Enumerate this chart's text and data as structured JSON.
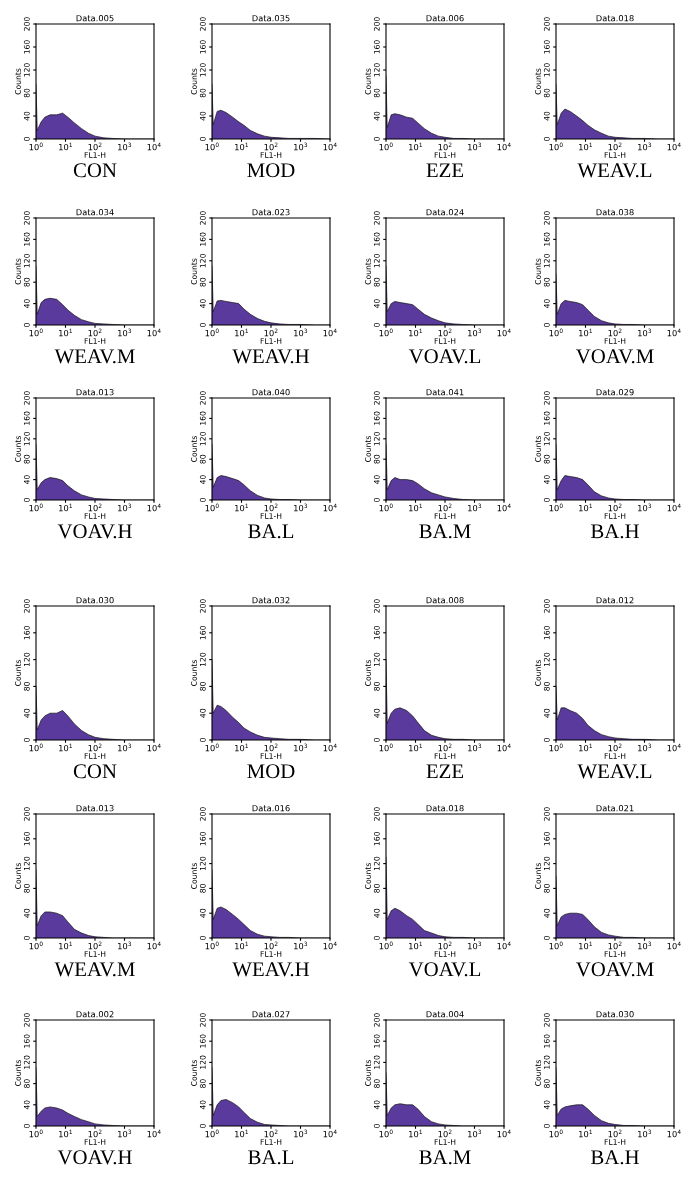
{
  "chart_data": [
    {
      "type": "area",
      "title": "Data.005",
      "xlabel": "FL1-H",
      "ylabel": "Counts",
      "annotations": [
        "CON"
      ],
      "x": [
        1,
        1.1,
        1.5,
        2,
        3,
        5,
        8,
        12,
        20,
        35,
        60,
        100,
        200,
        400,
        1000,
        3000,
        10000
      ],
      "values": [
        95,
        15,
        30,
        38,
        42,
        42,
        45,
        38,
        28,
        18,
        10,
        5,
        2,
        1,
        0,
        0,
        0
      ],
      "color": "#5b3a9e",
      "log": "x",
      "xlim": [
        1,
        10000
      ],
      "ylim": [
        0,
        200
      ],
      "xticks": [
        {
          "value": 1,
          "label": "10$^{0}$"
        },
        {
          "value": 10,
          "label": "10$^{1}$"
        },
        {
          "value": 100,
          "label": "10$^{2}$"
        },
        {
          "value": 1000,
          "label": "10$^{3}$"
        },
        {
          "value": 10000,
          "label": "10$^{4}$"
        }
      ],
      "yticks": [
        0,
        40,
        80,
        120,
        160,
        200
      ],
      "grid": false
    },
    {
      "type": "area",
      "title": "Data.035",
      "xlabel": "FL1-H",
      "ylabel": "Counts",
      "annotations": [
        "MOD"
      ],
      "x": [
        1,
        1.1,
        1.5,
        2,
        3,
        5,
        8,
        12,
        20,
        35,
        60,
        100,
        200,
        400,
        1000,
        3000,
        10000
      ],
      "values": [
        95,
        25,
        48,
        50,
        46,
        38,
        30,
        24,
        15,
        9,
        5,
        3,
        2,
        1,
        1,
        1,
        0
      ],
      "color": "#5b3a9e",
      "log": "x",
      "xlim": [
        1,
        10000
      ],
      "ylim": [
        0,
        200
      ],
      "xticks": [
        {
          "value": 1,
          "label": "10$^{0}$"
        },
        {
          "value": 10,
          "label": "10$^{1}$"
        },
        {
          "value": 100,
          "label": "10$^{2}$"
        },
        {
          "value": 1000,
          "label": "10$^{3}$"
        },
        {
          "value": 10000,
          "label": "10$^{4}$"
        }
      ],
      "yticks": [
        0,
        40,
        80,
        120,
        160,
        200
      ],
      "grid": false
    },
    {
      "type": "area",
      "title": "Data.006",
      "xlabel": "FL1-H",
      "ylabel": "Counts",
      "annotations": [
        "EZE"
      ],
      "x": [
        1,
        1.1,
        1.5,
        2,
        3,
        5,
        8,
        12,
        20,
        35,
        60,
        100,
        200,
        400,
        1000,
        3000,
        10000
      ],
      "values": [
        110,
        20,
        42,
        44,
        42,
        38,
        36,
        28,
        18,
        10,
        5,
        3,
        1,
        1,
        0,
        0,
        0
      ],
      "color": "#5b3a9e",
      "log": "x",
      "xlim": [
        1,
        10000
      ],
      "ylim": [
        0,
        200
      ],
      "xticks": [
        {
          "value": 1,
          "label": "10$^{0}$"
        },
        {
          "value": 10,
          "label": "10$^{1}$"
        },
        {
          "value": 100,
          "label": "10$^{2}$"
        },
        {
          "value": 1000,
          "label": "10$^{3}$"
        },
        {
          "value": 10000,
          "label": "10$^{4}$"
        }
      ],
      "yticks": [
        0,
        40,
        80,
        120,
        160,
        200
      ],
      "grid": false
    },
    {
      "type": "area",
      "title": "Data.018",
      "xlabel": "FL1-H",
      "ylabel": "Counts",
      "annotations": [
        "WEAV.L"
      ],
      "x": [
        1,
        1.1,
        1.5,
        2,
        3,
        5,
        8,
        12,
        20,
        35,
        60,
        100,
        200,
        400,
        1000,
        3000,
        10000
      ],
      "values": [
        95,
        25,
        45,
        52,
        48,
        40,
        32,
        24,
        16,
        10,
        5,
        3,
        2,
        1,
        1,
        0,
        0
      ],
      "color": "#5b3a9e",
      "log": "x",
      "xlim": [
        1,
        10000
      ],
      "ylim": [
        0,
        200
      ],
      "xticks": [
        {
          "value": 1,
          "label": "10$^{0}$"
        },
        {
          "value": 10,
          "label": "10$^{1}$"
        },
        {
          "value": 100,
          "label": "10$^{2}$"
        },
        {
          "value": 1000,
          "label": "10$^{3}$"
        },
        {
          "value": 10000,
          "label": "10$^{4}$"
        }
      ],
      "yticks": [
        0,
        40,
        80,
        120,
        160,
        200
      ],
      "grid": false
    },
    {
      "type": "area",
      "title": "Data.034",
      "xlabel": "FL1-H",
      "ylabel": "Counts",
      "annotations": [
        "WEAV.M"
      ],
      "x": [
        1,
        1.1,
        1.5,
        2,
        3,
        5,
        8,
        12,
        20,
        35,
        60,
        100,
        200,
        400,
        1000,
        3000,
        10000
      ],
      "values": [
        110,
        20,
        42,
        48,
        50,
        48,
        38,
        28,
        18,
        10,
        6,
        3,
        2,
        1,
        0,
        0,
        0
      ],
      "color": "#5b3a9e",
      "log": "x",
      "xlim": [
        1,
        10000
      ],
      "ylim": [
        0,
        200
      ],
      "xticks": [
        {
          "value": 1,
          "label": "10$^{0}$"
        },
        {
          "value": 10,
          "label": "10$^{1}$"
        },
        {
          "value": 100,
          "label": "10$^{2}$"
        },
        {
          "value": 1000,
          "label": "10$^{3}$"
        },
        {
          "value": 10000,
          "label": "10$^{4}$"
        }
      ],
      "yticks": [
        0,
        40,
        80,
        120,
        160,
        200
      ],
      "grid": false
    },
    {
      "type": "area",
      "title": "Data.023",
      "xlabel": "FL1-H",
      "ylabel": "Counts",
      "annotations": [
        "WEAV.H"
      ],
      "x": [
        1,
        1.1,
        1.5,
        2,
        3,
        5,
        8,
        12,
        20,
        35,
        60,
        100,
        200,
        400,
        1000,
        3000,
        10000
      ],
      "values": [
        110,
        25,
        45,
        46,
        44,
        42,
        40,
        30,
        20,
        12,
        7,
        4,
        2,
        1,
        1,
        0,
        0
      ],
      "color": "#5b3a9e",
      "log": "x",
      "xlim": [
        1,
        10000
      ],
      "ylim": [
        0,
        200
      ],
      "xticks": [
        {
          "value": 1,
          "label": "10$^{0}$"
        },
        {
          "value": 10,
          "label": "10$^{1}$"
        },
        {
          "value": 100,
          "label": "10$^{2}$"
        },
        {
          "value": 1000,
          "label": "10$^{3}$"
        },
        {
          "value": 10000,
          "label": "10$^{4}$"
        }
      ],
      "yticks": [
        0,
        40,
        80,
        120,
        160,
        200
      ],
      "grid": false
    },
    {
      "type": "area",
      "title": "Data.024",
      "xlabel": "FL1-H",
      "ylabel": "Counts",
      "annotations": [
        "VOAV.L"
      ],
      "x": [
        1,
        1.1,
        1.5,
        2,
        3,
        5,
        8,
        12,
        20,
        35,
        60,
        100,
        200,
        400,
        1000,
        3000,
        10000
      ],
      "values": [
        110,
        25,
        40,
        44,
        42,
        40,
        38,
        30,
        20,
        13,
        8,
        4,
        2,
        1,
        0,
        0,
        0
      ],
      "color": "#5b3a9e",
      "log": "x",
      "xlim": [
        1,
        10000
      ],
      "ylim": [
        0,
        200
      ],
      "xticks": [
        {
          "value": 1,
          "label": "10$^{0}$"
        },
        {
          "value": 10,
          "label": "10$^{1}$"
        },
        {
          "value": 100,
          "label": "10$^{2}$"
        },
        {
          "value": 1000,
          "label": "10$^{3}$"
        },
        {
          "value": 10000,
          "label": "10$^{4}$"
        }
      ],
      "yticks": [
        0,
        40,
        80,
        120,
        160,
        200
      ],
      "grid": false
    },
    {
      "type": "area",
      "title": "Data.038",
      "xlabel": "FL1-H",
      "ylabel": "Counts",
      "annotations": [
        "VOAV.M"
      ],
      "x": [
        1,
        1.1,
        1.5,
        2,
        3,
        5,
        8,
        12,
        20,
        35,
        60,
        100,
        200,
        400,
        1000,
        3000,
        10000
      ],
      "values": [
        95,
        20,
        40,
        46,
        44,
        42,
        38,
        28,
        16,
        8,
        4,
        2,
        1,
        1,
        0,
        0,
        0
      ],
      "color": "#5b3a9e",
      "log": "x",
      "xlim": [
        1,
        10000
      ],
      "ylim": [
        0,
        200
      ],
      "xticks": [
        {
          "value": 1,
          "label": "10$^{0}$"
        },
        {
          "value": 10,
          "label": "10$^{1}$"
        },
        {
          "value": 100,
          "label": "10$^{2}$"
        },
        {
          "value": 1000,
          "label": "10$^{3}$"
        },
        {
          "value": 10000,
          "label": "10$^{4}$"
        }
      ],
      "yticks": [
        0,
        40,
        80,
        120,
        160,
        200
      ],
      "grid": false
    },
    {
      "type": "area",
      "title": "Data.013",
      "xlabel": "FL1-H",
      "ylabel": "Counts",
      "annotations": [
        "VOAV.H"
      ],
      "x": [
        1,
        1.1,
        1.5,
        2,
        3,
        5,
        8,
        12,
        20,
        35,
        60,
        100,
        200,
        400,
        1000,
        3000,
        10000
      ],
      "values": [
        110,
        20,
        34,
        40,
        44,
        42,
        38,
        28,
        18,
        10,
        6,
        3,
        2,
        1,
        0,
        0,
        0
      ],
      "color": "#5b3a9e",
      "log": "x",
      "xlim": [
        1,
        10000
      ],
      "ylim": [
        0,
        200
      ],
      "xticks": [
        {
          "value": 1,
          "label": "10$^{0}$"
        },
        {
          "value": 10,
          "label": "10$^{1}$"
        },
        {
          "value": 100,
          "label": "10$^{2}$"
        },
        {
          "value": 1000,
          "label": "10$^{3}$"
        },
        {
          "value": 10000,
          "label": "10$^{4}$"
        }
      ],
      "yticks": [
        0,
        40,
        80,
        120,
        160,
        200
      ],
      "grid": false
    },
    {
      "type": "area",
      "title": "Data.040",
      "xlabel": "FL1-H",
      "ylabel": "Counts",
      "annotations": [
        "BA.L"
      ],
      "x": [
        1,
        1.1,
        1.5,
        2,
        3,
        5,
        8,
        12,
        20,
        35,
        60,
        100,
        200,
        400,
        1000,
        3000,
        10000
      ],
      "values": [
        110,
        25,
        44,
        48,
        46,
        42,
        38,
        30,
        18,
        9,
        4,
        2,
        1,
        1,
        0,
        0,
        0
      ],
      "color": "#5b3a9e",
      "log": "x",
      "xlim": [
        1,
        10000
      ],
      "ylim": [
        0,
        200
      ],
      "xticks": [
        {
          "value": 1,
          "label": "10$^{0}$"
        },
        {
          "value": 10,
          "label": "10$^{1}$"
        },
        {
          "value": 100,
          "label": "10$^{2}$"
        },
        {
          "value": 1000,
          "label": "10$^{3}$"
        },
        {
          "value": 10000,
          "label": "10$^{4}$"
        }
      ],
      "yticks": [
        0,
        40,
        80,
        120,
        160,
        200
      ],
      "grid": false
    },
    {
      "type": "area",
      "title": "Data.041",
      "xlabel": "FL1-H",
      "ylabel": "Counts",
      "annotations": [
        "BA.M"
      ],
      "x": [
        1,
        1.1,
        1.5,
        2,
        3,
        5,
        8,
        12,
        20,
        35,
        60,
        100,
        200,
        400,
        1000,
        3000,
        10000
      ],
      "values": [
        110,
        20,
        38,
        44,
        40,
        40,
        38,
        32,
        22,
        14,
        10,
        6,
        3,
        1,
        0,
        0,
        0
      ],
      "color": "#5b3a9e",
      "log": "x",
      "xlim": [
        1,
        10000
      ],
      "ylim": [
        0,
        200
      ],
      "xticks": [
        {
          "value": 1,
          "label": "10$^{0}$"
        },
        {
          "value": 10,
          "label": "10$^{1}$"
        },
        {
          "value": 100,
          "label": "10$^{2}$"
        },
        {
          "value": 1000,
          "label": "10$^{3}$"
        },
        {
          "value": 10000,
          "label": "10$^{4}$"
        }
      ],
      "yticks": [
        0,
        40,
        80,
        120,
        160,
        200
      ],
      "grid": false
    },
    {
      "type": "area",
      "title": "Data.029",
      "xlabel": "FL1-H",
      "ylabel": "Counts",
      "annotations": [
        "BA.H"
      ],
      "x": [
        1,
        1.1,
        1.5,
        2,
        3,
        5,
        8,
        12,
        20,
        35,
        60,
        100,
        200,
        400,
        1000,
        3000,
        10000
      ],
      "values": [
        110,
        20,
        38,
        48,
        46,
        44,
        40,
        30,
        16,
        8,
        4,
        2,
        1,
        1,
        0,
        0,
        0
      ],
      "color": "#5b3a9e",
      "log": "x",
      "xlim": [
        1,
        10000
      ],
      "ylim": [
        0,
        200
      ],
      "xticks": [
        {
          "value": 1,
          "label": "10$^{0}$"
        },
        {
          "value": 10,
          "label": "10$^{1}$"
        },
        {
          "value": 100,
          "label": "10$^{2}$"
        },
        {
          "value": 1000,
          "label": "10$^{3}$"
        },
        {
          "value": 10000,
          "label": "10$^{4}$"
        }
      ],
      "yticks": [
        0,
        40,
        80,
        120,
        160,
        200
      ],
      "grid": false
    },
    {
      "type": "area",
      "title": "Data.030",
      "xlabel": "FL1-H",
      "ylabel": "Counts",
      "annotations": [
        "CON"
      ],
      "x": [
        1,
        1.1,
        1.5,
        2,
        3,
        5,
        8,
        12,
        20,
        35,
        60,
        100,
        200,
        400,
        1000,
        3000,
        10000
      ],
      "values": [
        80,
        15,
        30,
        36,
        40,
        40,
        44,
        36,
        24,
        14,
        8,
        4,
        2,
        1,
        0,
        0,
        0
      ],
      "color": "#5b3a9e",
      "log": "x",
      "xlim": [
        1,
        10000
      ],
      "ylim": [
        0,
        200
      ],
      "xticks": [
        {
          "value": 1,
          "label": "10$^{0}$"
        },
        {
          "value": 10,
          "label": "10$^{1}$"
        },
        {
          "value": 100,
          "label": "10$^{2}$"
        },
        {
          "value": 1000,
          "label": "10$^{3}$"
        },
        {
          "value": 10000,
          "label": "10$^{4}$"
        }
      ],
      "yticks": [
        0,
        40,
        80,
        120,
        160,
        200
      ],
      "grid": false
    },
    {
      "type": "area",
      "title": "Data.032",
      "xlabel": "FL1-H",
      "ylabel": "Counts",
      "annotations": [
        "MOD"
      ],
      "x": [
        1,
        1.1,
        1.5,
        2,
        3,
        5,
        8,
        12,
        20,
        35,
        60,
        100,
        200,
        400,
        1000,
        3000,
        10000
      ],
      "values": [
        120,
        40,
        52,
        50,
        44,
        34,
        26,
        18,
        12,
        7,
        4,
        3,
        2,
        1,
        1,
        0,
        0
      ],
      "color": "#5b3a9e",
      "log": "x",
      "xlim": [
        1,
        10000
      ],
      "ylim": [
        0,
        200
      ],
      "xticks": [
        {
          "value": 1,
          "label": "10$^{0}$"
        },
        {
          "value": 10,
          "label": "10$^{1}$"
        },
        {
          "value": 100,
          "label": "10$^{2}$"
        },
        {
          "value": 1000,
          "label": "10$^{3}$"
        },
        {
          "value": 10000,
          "label": "10$^{4}$"
        }
      ],
      "yticks": [
        0,
        40,
        80,
        120,
        160,
        200
      ],
      "grid": false
    },
    {
      "type": "area",
      "title": "Data.008",
      "xlabel": "FL1-H",
      "ylabel": "Counts",
      "annotations": [
        "EZE"
      ],
      "x": [
        1,
        1.1,
        1.5,
        2,
        3,
        5,
        8,
        12,
        20,
        35,
        60,
        100,
        200,
        400,
        1000,
        3000,
        10000
      ],
      "values": [
        120,
        25,
        40,
        46,
        48,
        44,
        36,
        26,
        14,
        7,
        4,
        2,
        1,
        1,
        0,
        0,
        0
      ],
      "color": "#5b3a9e",
      "log": "x",
      "xlim": [
        1,
        10000
      ],
      "ylim": [
        0,
        200
      ],
      "xticks": [
        {
          "value": 1,
          "label": "10$^{0}$"
        },
        {
          "value": 10,
          "label": "10$^{1}$"
        },
        {
          "value": 100,
          "label": "10$^{2}$"
        },
        {
          "value": 1000,
          "label": "10$^{3}$"
        },
        {
          "value": 10000,
          "label": "10$^{4}$"
        }
      ],
      "yticks": [
        0,
        40,
        80,
        120,
        160,
        200
      ],
      "grid": false
    },
    {
      "type": "area",
      "title": "Data.012",
      "xlabel": "FL1-H",
      "ylabel": "Counts",
      "annotations": [
        "WEAV.L"
      ],
      "x": [
        1,
        1.1,
        1.5,
        2,
        3,
        5,
        8,
        12,
        20,
        35,
        60,
        100,
        200,
        400,
        1000,
        3000,
        10000
      ],
      "values": [
        80,
        30,
        48,
        48,
        44,
        40,
        32,
        22,
        14,
        8,
        5,
        3,
        2,
        1,
        1,
        0,
        0
      ],
      "color": "#5b3a9e",
      "log": "x",
      "xlim": [
        1,
        10000
      ],
      "ylim": [
        0,
        200
      ],
      "xticks": [
        {
          "value": 1,
          "label": "10$^{0}$"
        },
        {
          "value": 10,
          "label": "10$^{1}$"
        },
        {
          "value": 100,
          "label": "10$^{2}$"
        },
        {
          "value": 1000,
          "label": "10$^{3}$"
        },
        {
          "value": 10000,
          "label": "10$^{4}$"
        }
      ],
      "yticks": [
        0,
        40,
        80,
        120,
        160,
        200
      ],
      "grid": false
    },
    {
      "type": "area",
      "title": "Data.013",
      "xlabel": "FL1-H",
      "ylabel": "Counts",
      "annotations": [
        "WEAV.M"
      ],
      "x": [
        1,
        1.1,
        1.5,
        2,
        3,
        5,
        8,
        12,
        20,
        35,
        60,
        100,
        200,
        400,
        1000,
        3000,
        10000
      ],
      "values": [
        110,
        20,
        36,
        42,
        42,
        40,
        36,
        26,
        14,
        8,
        4,
        2,
        1,
        0,
        0,
        0,
        0
      ],
      "color": "#5b3a9e",
      "log": "x",
      "xlim": [
        1,
        10000
      ],
      "ylim": [
        0,
        200
      ],
      "xticks": [
        {
          "value": 1,
          "label": "10$^{0}$"
        },
        {
          "value": 10,
          "label": "10$^{1}$"
        },
        {
          "value": 100,
          "label": "10$^{2}$"
        },
        {
          "value": 1000,
          "label": "10$^{3}$"
        },
        {
          "value": 10000,
          "label": "10$^{4}$"
        }
      ],
      "yticks": [
        0,
        40,
        80,
        120,
        160,
        200
      ],
      "grid": false
    },
    {
      "type": "area",
      "title": "Data.016",
      "xlabel": "FL1-H",
      "ylabel": "Counts",
      "annotations": [
        "WEAV.H"
      ],
      "x": [
        1,
        1.1,
        1.5,
        2,
        3,
        5,
        8,
        12,
        20,
        35,
        60,
        100,
        200,
        400,
        1000,
        3000,
        10000
      ],
      "values": [
        110,
        30,
        48,
        50,
        46,
        38,
        30,
        22,
        12,
        6,
        3,
        2,
        1,
        1,
        0,
        0,
        0
      ],
      "color": "#5b3a9e",
      "log": "x",
      "xlim": [
        1,
        10000
      ],
      "ylim": [
        0,
        200
      ],
      "xticks": [
        {
          "value": 1,
          "label": "10$^{0}$"
        },
        {
          "value": 10,
          "label": "10$^{1}$"
        },
        {
          "value": 100,
          "label": "10$^{2}$"
        },
        {
          "value": 1000,
          "label": "10$^{3}$"
        },
        {
          "value": 10000,
          "label": "10$^{4}$"
        }
      ],
      "yticks": [
        0,
        40,
        80,
        120,
        160,
        200
      ],
      "grid": false
    },
    {
      "type": "area",
      "title": "Data.018",
      "xlabel": "FL1-H",
      "ylabel": "Counts",
      "annotations": [
        "VOAV.L"
      ],
      "x": [
        1,
        1.1,
        1.5,
        2,
        3,
        5,
        8,
        12,
        20,
        35,
        60,
        100,
        200,
        400,
        1000,
        3000,
        10000
      ],
      "values": [
        130,
        30,
        44,
        48,
        44,
        36,
        30,
        22,
        12,
        8,
        4,
        2,
        1,
        1,
        0,
        0,
        0
      ],
      "color": "#5b3a9e",
      "log": "x",
      "xlim": [
        1,
        10000
      ],
      "ylim": [
        0,
        200
      ],
      "xticks": [
        {
          "value": 1,
          "label": "10$^{0}$"
        },
        {
          "value": 10,
          "label": "10$^{1}$"
        },
        {
          "value": 100,
          "label": "10$^{2}$"
        },
        {
          "value": 1000,
          "label": "10$^{3}$"
        },
        {
          "value": 10000,
          "label": "10$^{4}$"
        }
      ],
      "yticks": [
        0,
        40,
        80,
        120,
        160,
        200
      ],
      "grid": false
    },
    {
      "type": "area",
      "title": "Data.021",
      "xlabel": "FL1-H",
      "ylabel": "Counts",
      "annotations": [
        "VOAV.M"
      ],
      "x": [
        1,
        1.1,
        1.5,
        2,
        3,
        5,
        8,
        12,
        20,
        35,
        60,
        100,
        200,
        400,
        1000,
        3000,
        10000
      ],
      "values": [
        100,
        20,
        34,
        38,
        40,
        40,
        38,
        30,
        18,
        9,
        5,
        3,
        1,
        1,
        0,
        0,
        0
      ],
      "color": "#5b3a9e",
      "log": "x",
      "xlim": [
        1,
        10000
      ],
      "ylim": [
        0,
        200
      ],
      "xticks": [
        {
          "value": 1,
          "label": "10$^{0}$"
        },
        {
          "value": 10,
          "label": "10$^{1}$"
        },
        {
          "value": 100,
          "label": "10$^{2}$"
        },
        {
          "value": 1000,
          "label": "10$^{3}$"
        },
        {
          "value": 10000,
          "label": "10$^{4}$"
        }
      ],
      "yticks": [
        0,
        40,
        80,
        120,
        160,
        200
      ],
      "grid": false
    },
    {
      "type": "area",
      "title": "Data.002",
      "xlabel": "FL1-H",
      "ylabel": "Counts",
      "annotations": [
        "VOAV.H"
      ],
      "x": [
        1,
        1.1,
        1.5,
        2,
        3,
        5,
        8,
        12,
        20,
        35,
        60,
        100,
        200,
        400,
        1000,
        3000,
        10000
      ],
      "values": [
        110,
        18,
        28,
        34,
        36,
        34,
        30,
        24,
        18,
        12,
        8,
        4,
        2,
        1,
        0,
        0,
        0
      ],
      "color": "#5b3a9e",
      "log": "x",
      "xlim": [
        1,
        10000
      ],
      "ylim": [
        0,
        200
      ],
      "xticks": [
        {
          "value": 1,
          "label": "10$^{0}$"
        },
        {
          "value": 10,
          "label": "10$^{1}$"
        },
        {
          "value": 100,
          "label": "10$^{2}$"
        },
        {
          "value": 1000,
          "label": "10$^{3}$"
        },
        {
          "value": 10000,
          "label": "10$^{4}$"
        }
      ],
      "yticks": [
        0,
        40,
        80,
        120,
        160,
        200
      ],
      "grid": false
    },
    {
      "type": "area",
      "title": "Data.027",
      "xlabel": "FL1-H",
      "ylabel": "Counts",
      "annotations": [
        "BA.L"
      ],
      "x": [
        1,
        1.1,
        1.5,
        2,
        3,
        5,
        8,
        12,
        20,
        35,
        60,
        100,
        200,
        400,
        1000,
        3000,
        10000
      ],
      "values": [
        110,
        20,
        40,
        48,
        50,
        44,
        36,
        26,
        14,
        7,
        3,
        2,
        1,
        0,
        0,
        0,
        0
      ],
      "color": "#5b3a9e",
      "log": "x",
      "xlim": [
        1,
        10000
      ],
      "ylim": [
        0,
        200
      ],
      "xticks": [
        {
          "value": 1,
          "label": "10$^{0}$"
        },
        {
          "value": 10,
          "label": "10$^{1}$"
        },
        {
          "value": 100,
          "label": "10$^{2}$"
        },
        {
          "value": 1000,
          "label": "10$^{3}$"
        },
        {
          "value": 10000,
          "label": "10$^{4}$"
        }
      ],
      "yticks": [
        0,
        40,
        80,
        120,
        160,
        200
      ],
      "grid": false
    },
    {
      "type": "area",
      "title": "Data.004",
      "xlabel": "FL1-H",
      "ylabel": "Counts",
      "annotations": [
        "BA.M"
      ],
      "x": [
        1,
        1.1,
        1.5,
        2,
        3,
        5,
        8,
        12,
        20,
        35,
        60,
        100,
        200,
        400,
        1000,
        3000,
        10000
      ],
      "values": [
        100,
        20,
        34,
        40,
        42,
        40,
        40,
        32,
        18,
        8,
        4,
        2,
        1,
        0,
        0,
        0,
        0
      ],
      "color": "#5b3a9e",
      "log": "x",
      "xlim": [
        1,
        10000
      ],
      "ylim": [
        0,
        200
      ],
      "xticks": [
        {
          "value": 1,
          "label": "10$^{0}$"
        },
        {
          "value": 10,
          "label": "10$^{1}$"
        },
        {
          "value": 100,
          "label": "10$^{2}$"
        },
        {
          "value": 1000,
          "label": "10$^{3}$"
        },
        {
          "value": 10000,
          "label": "10$^{4}$"
        }
      ],
      "yticks": [
        0,
        40,
        80,
        120,
        160,
        200
      ],
      "grid": false
    },
    {
      "type": "area",
      "title": "Data.030",
      "xlabel": "FL1-H",
      "ylabel": "Counts",
      "annotations": [
        "BA.H"
      ],
      "x": [
        1,
        1.1,
        1.5,
        2,
        3,
        5,
        8,
        12,
        20,
        35,
        60,
        100,
        200,
        400,
        1000,
        3000,
        10000
      ],
      "values": [
        110,
        20,
        32,
        36,
        38,
        40,
        40,
        32,
        20,
        10,
        5,
        3,
        1,
        1,
        0,
        0,
        0
      ],
      "color": "#5b3a9e",
      "log": "x",
      "xlim": [
        1,
        10000
      ],
      "ylim": [
        0,
        200
      ],
      "xticks": [
        {
          "value": 1,
          "label": "10$^{0}$"
        },
        {
          "value": 10,
          "label": "10$^{1}$"
        },
        {
          "value": 100,
          "label": "10$^{2}$"
        },
        {
          "value": 1000,
          "label": "10$^{3}$"
        },
        {
          "value": 10000,
          "label": "10$^{4}$"
        }
      ],
      "yticks": [
        0,
        40,
        80,
        120,
        160,
        200
      ],
      "grid": false
    }
  ]
}
